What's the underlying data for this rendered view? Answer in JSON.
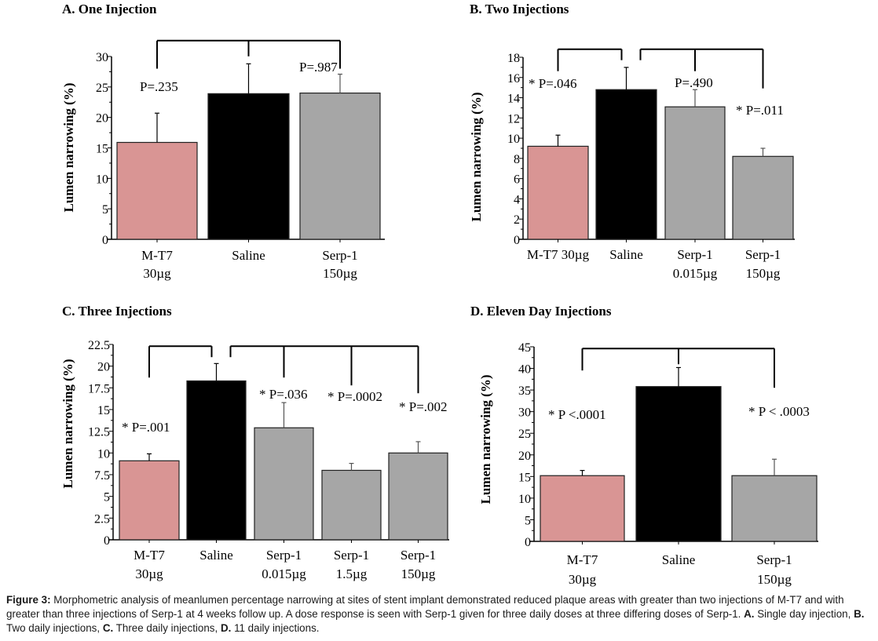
{
  "chart_data": [
    {
      "type": "bar",
      "panel": "A",
      "title": "A. One Injection",
      "ylabel": "Lumen narrowing (%)",
      "xlabel": "",
      "ylim": [
        0,
        30
      ],
      "yticks": [
        0,
        5,
        10,
        15,
        20,
        25,
        30
      ],
      "grid": false,
      "categories": [
        [
          "M-T7",
          "30µg"
        ],
        [
          "Saline"
        ],
        [
          "Serp-1",
          "150µg"
        ]
      ],
      "values": [
        15.9,
        23.9,
        24.0
      ],
      "errors": [
        4.8,
        4.9,
        3.1
      ],
      "colors": [
        "#D99594",
        "#000000",
        "#A6A6A6"
      ],
      "brackets": [
        {
          "from": 1,
          "to": [
            0,
            2
          ],
          "top": 32.6,
          "ends": [
            28.0,
            30.0,
            30.0
          ]
        }
      ],
      "annotations": [
        {
          "text": "P=.235",
          "x": 0,
          "y": 25.6
        },
        {
          "text": "P=.987",
          "x": 2,
          "y": 28.6
        }
      ]
    },
    {
      "type": "bar",
      "panel": "B",
      "title": "B. Two Injections",
      "ylabel": "Lumen narrowing (%)",
      "xlabel": "",
      "ylim": [
        0,
        18
      ],
      "yticks": [
        0,
        2,
        4,
        6,
        8,
        10,
        12,
        14,
        16,
        18
      ],
      "grid": false,
      "categories": [
        [
          "M-T7 30µg"
        ],
        [
          "Saline"
        ],
        [
          "Serp-1",
          "0.015µg"
        ],
        [
          "Serp-1",
          "150µg"
        ]
      ],
      "values": [
        9.2,
        14.8,
        13.1,
        8.2
      ],
      "errors": [
        1.1,
        2.2,
        1.7,
        0.8
      ],
      "colors": [
        "#D99594",
        "#000000",
        "#A6A6A6",
        "#A6A6A6"
      ],
      "brackets": [
        {
          "from": 1,
          "to": [
            0
          ],
          "top": 18.8
        },
        {
          "from": 1,
          "to": [
            2,
            3
          ],
          "top": 18.8
        }
      ],
      "annotations": [
        {
          "text": "* P=.046",
          "x": 0,
          "y": 15.3
        },
        {
          "text": "P=.490",
          "x": 2,
          "y": 15.4
        },
        {
          "text": "* P=.011",
          "x": 3,
          "y": 12.6
        }
      ]
    },
    {
      "type": "bar",
      "panel": "C",
      "title": "C. Three Injections",
      "ylabel": "Lumen narrowing (%)",
      "xlabel": "",
      "ylim": [
        0,
        22.5
      ],
      "yticks": [
        0,
        2.5,
        5,
        7.5,
        10,
        12.5,
        15,
        17.5,
        20,
        22.5
      ],
      "grid": false,
      "categories": [
        [
          "M-T7",
          "30µg"
        ],
        [
          "Saline"
        ],
        [
          "Serp-1",
          "0.015µg"
        ],
        [
          "Serp-1",
          "1.5µg"
        ],
        [
          "Serp-1",
          "150µg"
        ]
      ],
      "values": [
        9.1,
        18.3,
        12.9,
        8.0,
        10.0
      ],
      "errors": [
        0.8,
        2.0,
        2.9,
        0.8,
        1.3
      ],
      "colors": [
        "#D99594",
        "#000000",
        "#A6A6A6",
        "#A6A6A6",
        "#A6A6A6"
      ],
      "brackets": [
        {
          "from": 1,
          "to": [
            0
          ],
          "top": 22.3
        },
        {
          "from": 1,
          "to": [
            2,
            3,
            4
          ],
          "top": 22.3
        }
      ],
      "annotations": [
        {
          "text": "* P=.001",
          "x": 0,
          "y": 12.6
        },
        {
          "text": "* P=.036",
          "x": 2,
          "y": 16.8
        },
        {
          "text": "* P=.0002",
          "x": 3,
          "y": 16.6
        },
        {
          "text": "* P=.002",
          "x": 4,
          "y": 15.6
        }
      ]
    },
    {
      "type": "bar",
      "panel": "D",
      "title": "D. Eleven Day  Injections",
      "ylabel": "Lumen narrowing (%)",
      "xlabel": "",
      "ylim": [
        0,
        45
      ],
      "yticks": [
        0,
        5,
        10,
        15,
        20,
        25,
        30,
        35,
        40,
        45
      ],
      "grid": false,
      "categories": [
        [
          "M-T7",
          "30µg"
        ],
        [
          "Saline"
        ],
        [
          "Serp-1",
          "150µg"
        ]
      ],
      "values": [
        15.2,
        35.8,
        15.2
      ],
      "errors": [
        1.2,
        4.4,
        3.8
      ],
      "colors": [
        "#D99594",
        "#000000",
        "#A6A6A6"
      ],
      "brackets": [
        {
          "from": 1,
          "to": [
            0,
            2
          ],
          "top": 44.6
        }
      ],
      "annotations": [
        {
          "text": "* P <.0001",
          "x": 0,
          "y": 29.6
        },
        {
          "text": "* P < .0003",
          "x": 2,
          "y": 30.2
        }
      ]
    }
  ],
  "caption": {
    "label": "Figure 3:",
    "text1": " Morphometric analysis of meanlumen percentage narrowing at sites of stent implant demonstrated reduced plaque areas with greater than two injections of M-T7 and with greater than three injections of Serp-1 at 4 weeks follow up. A dose response is seen with Serp-1 given for three daily doses at three differing doses of Serp-1. ",
    "a_label": "A.",
    "a_text": " Single day injection, ",
    "b_label": "B.",
    "b_text": " Two daily injections, ",
    "c_label": "C.",
    "c_text": " Three daily injections, ",
    "d_label": "D.",
    "d_text": " 11 daily injections."
  }
}
